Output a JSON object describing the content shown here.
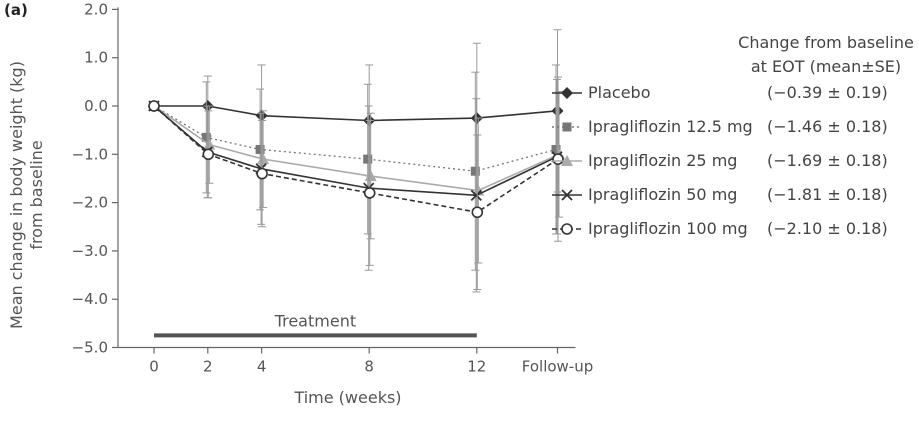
{
  "panel_label": "(a)",
  "chart_data": {
    "type": "line",
    "ylabel_lines": [
      "Mean change in body weight (kg)",
      "from baseline"
    ],
    "xlabel": "Time (weeks)",
    "ylim": [
      -5.0,
      2.0
    ],
    "yticks": [
      "2.0",
      "1.0",
      "0.0",
      "−1.0",
      "−2.0",
      "−3.0",
      "−4.0",
      "−5.0"
    ],
    "ytick_values": [
      2,
      1,
      0,
      -1,
      -2,
      -3,
      -4,
      -5
    ],
    "x_positions": [
      0,
      2,
      4,
      8,
      12,
      15
    ],
    "x_tick_labels": [
      "0",
      "2",
      "4",
      "8",
      "12",
      "Follow-up"
    ],
    "treatment_bar": {
      "label": "Treatment",
      "from": 0,
      "to": 12
    },
    "legend_header": [
      "Change from baseline",
      "at EOT (mean±SE)"
    ],
    "series": [
      {
        "name": "Placebo",
        "marker": "diamond",
        "color": "#333333",
        "dash": "solid",
        "eot": "(−0.39 ± 0.19)",
        "values": [
          0,
          0.0,
          -0.2,
          -0.3,
          -0.25,
          -0.1
        ],
        "err": [
          0,
          0.62,
          1.05,
          1.15,
          1.55,
          1.68
        ]
      },
      {
        "name": "Ipragliflozin 12.5 mg",
        "marker": "square",
        "color": "#777777",
        "dash": "dotted",
        "eot": "(−1.46 ± 0.18)",
        "values": [
          0,
          -0.65,
          -0.9,
          -1.1,
          -1.35,
          -0.9
        ],
        "err": [
          0,
          1.15,
          1.25,
          1.55,
          2.05,
          1.75
        ]
      },
      {
        "name": "Ipragliflozin 25 mg",
        "marker": "triangle",
        "color": "#aaaaaa",
        "dash": "solid",
        "eot": "(−1.69 ± 0.18)",
        "values": [
          0,
          -0.8,
          -1.1,
          -1.45,
          -1.75,
          -1.0
        ],
        "err": [
          0,
          0.8,
          1.0,
          1.3,
          1.5,
          1.3
        ]
      },
      {
        "name": "Ipragliflozin 50 mg",
        "marker": "x",
        "color": "#333333",
        "dash": "solid",
        "eot": "(−1.81 ± 0.18)",
        "values": [
          0,
          -0.95,
          -1.3,
          -1.7,
          -1.85,
          -1.05
        ],
        "err": [
          0,
          0.95,
          1.15,
          1.7,
          2.0,
          1.6
        ]
      },
      {
        "name": "Ipragliflozin 100 mg",
        "marker": "circle",
        "color": "#333333",
        "dash": "dashed",
        "eot": "(−2.10 ± 0.18)",
        "values": [
          0,
          -1.0,
          -1.4,
          -1.8,
          -2.2,
          -1.1
        ],
        "err": [
          0,
          0.9,
          1.1,
          1.5,
          1.6,
          1.7
        ]
      }
    ]
  }
}
